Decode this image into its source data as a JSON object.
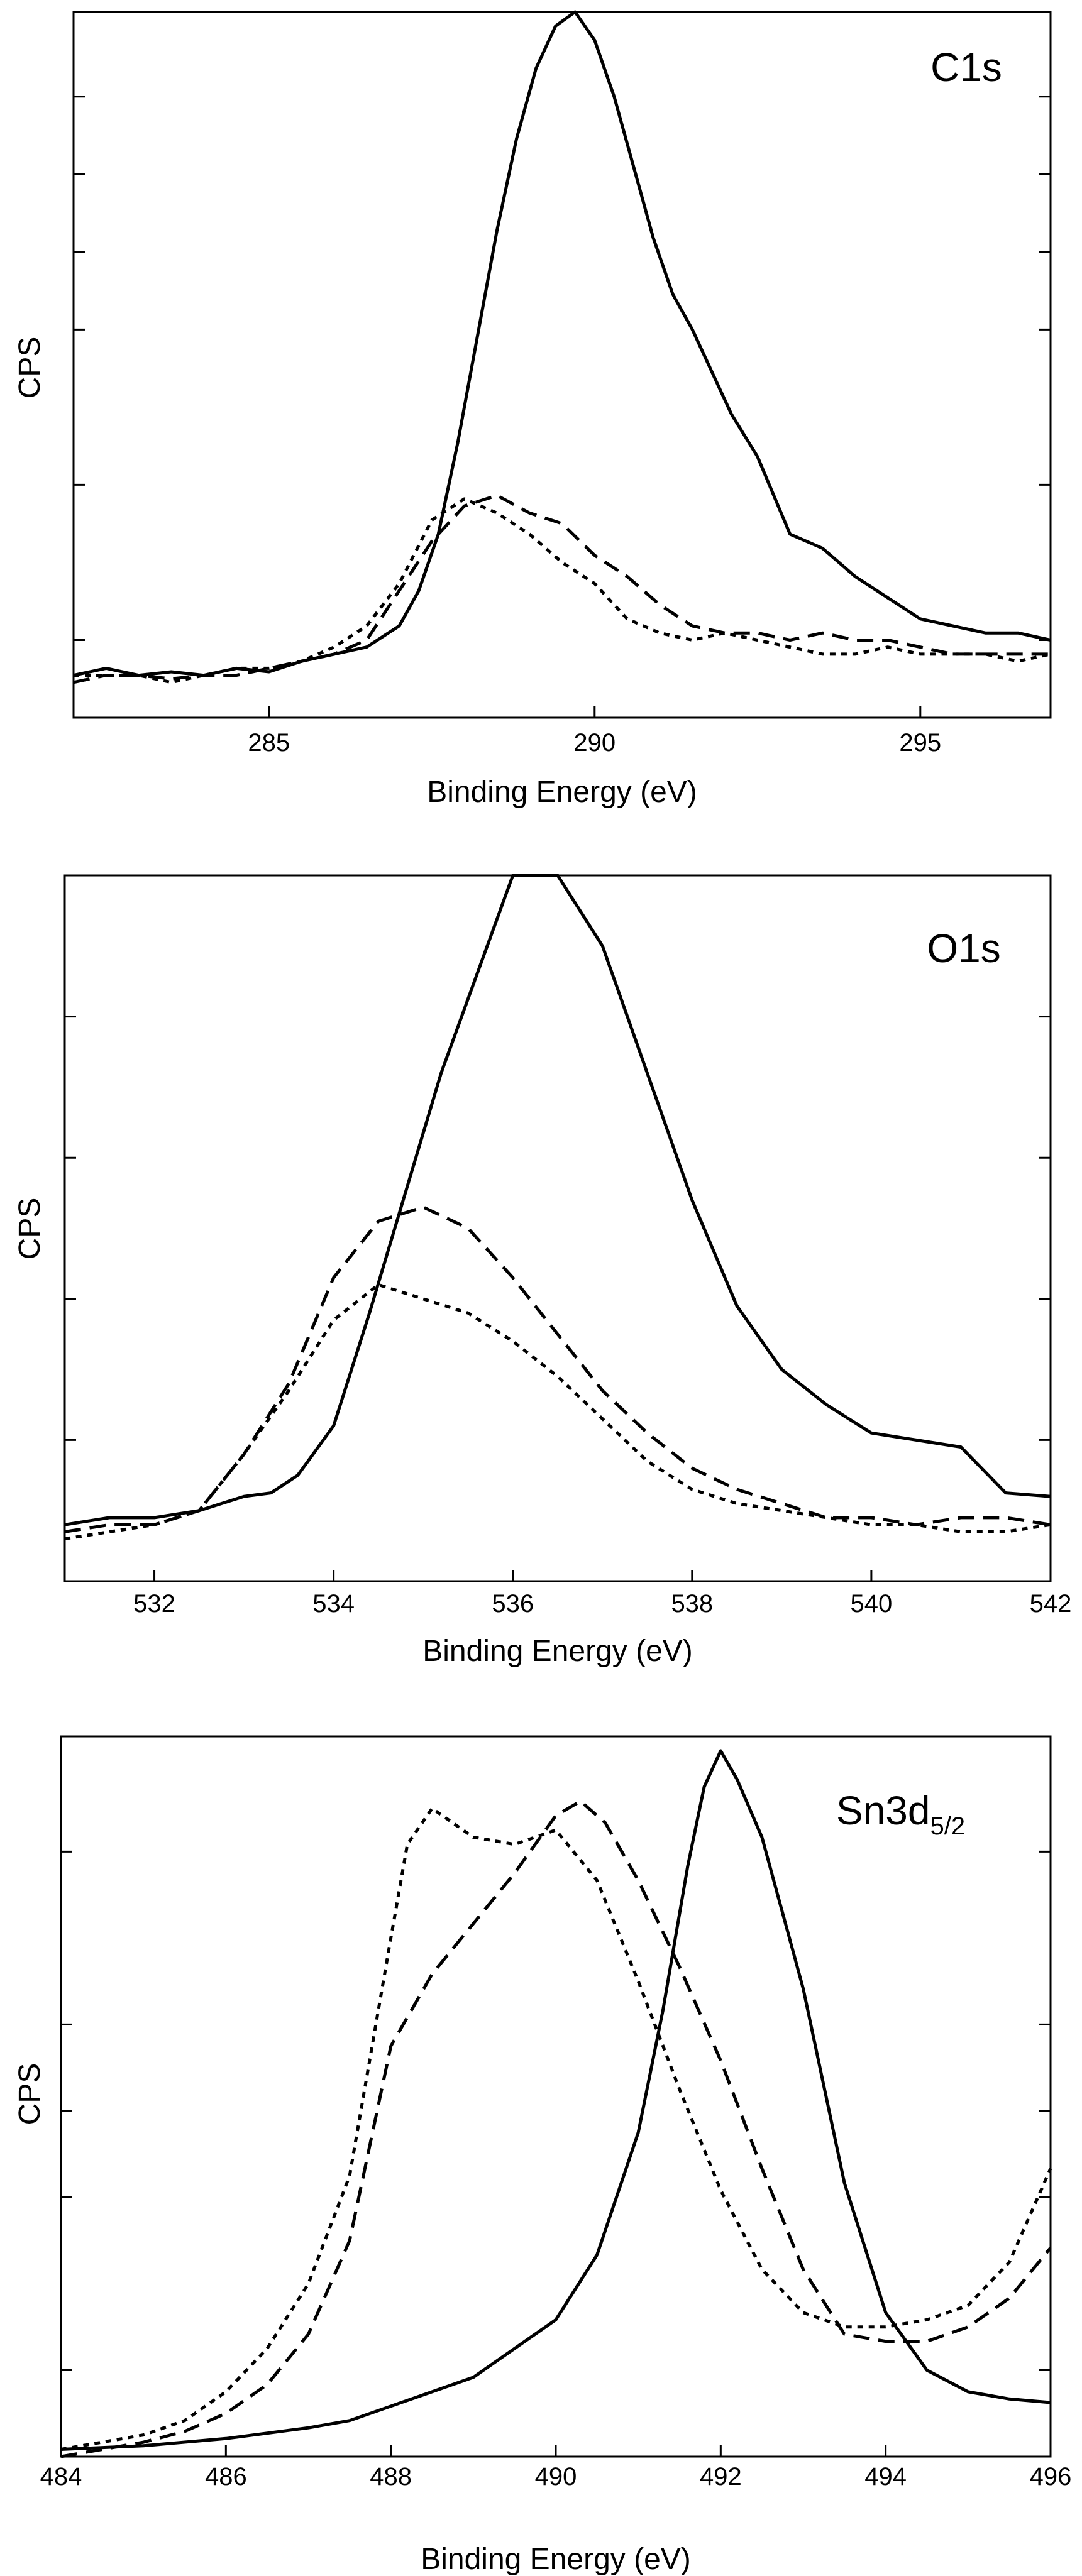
{
  "chart_data": [
    {
      "type": "line",
      "title": "C1s",
      "xlabel": "Binding Energy (eV)",
      "ylabel": "CPS",
      "xlim": [
        282,
        297
      ],
      "ylim": [
        0,
        100
      ],
      "xticks": [
        285,
        290,
        295
      ],
      "xtick_labels": [
        "285",
        "290",
        "295"
      ],
      "yticks": [
        11,
        33,
        55,
        66,
        77,
        88
      ],
      "series": [
        {
          "name": "solid",
          "style": "solid",
          "x": [
            282,
            282.5,
            283,
            283.5,
            284,
            284.5,
            285,
            285.5,
            286,
            286.5,
            287,
            287.3,
            287.6,
            287.9,
            288.2,
            288.5,
            288.8,
            289.1,
            289.4,
            289.7,
            290,
            290.3,
            290.6,
            290.9,
            291.2,
            291.5,
            291.8,
            292.1,
            292.5,
            293,
            293.5,
            294,
            294.5,
            295,
            295.5,
            296,
            296.5,
            297
          ],
          "values": [
            6,
            7,
            6,
            6.5,
            6,
            7,
            6.5,
            8,
            9,
            10,
            13,
            18,
            26,
            39,
            54,
            69,
            82,
            92,
            98,
            100,
            96,
            88,
            78,
            68,
            60,
            55,
            49,
            43,
            37,
            26,
            24,
            20,
            17,
            14,
            13,
            12,
            12,
            11
          ]
        },
        {
          "name": "dashed",
          "style": "dashed",
          "x": [
            282,
            282.5,
            283,
            283.5,
            284,
            284.5,
            285,
            285.5,
            286,
            286.5,
            287,
            287.5,
            288,
            288.5,
            289,
            289.5,
            290,
            290.5,
            291,
            291.5,
            292,
            292.5,
            293,
            293.5,
            294,
            294.5,
            295,
            295.5,
            296,
            296.5,
            297
          ],
          "values": [
            5,
            6,
            6,
            5.5,
            6,
            6,
            7,
            8,
            9,
            11,
            18,
            25,
            30,
            31.5,
            29,
            27.5,
            23,
            20,
            16,
            13,
            12,
            12,
            11,
            12,
            11,
            11,
            10,
            9,
            9,
            9,
            9
          ]
        },
        {
          "name": "dotted",
          "style": "dotted",
          "x": [
            282,
            282.5,
            283,
            283.5,
            284,
            284.5,
            285,
            285.5,
            286,
            286.5,
            287,
            287.5,
            288,
            288.5,
            289,
            289.5,
            290,
            290.5,
            291,
            291.5,
            292,
            292.5,
            293,
            293.5,
            294,
            294.5,
            295,
            295.5,
            296,
            296.5,
            297
          ],
          "values": [
            6,
            6,
            6,
            5,
            6,
            7,
            7,
            8,
            10,
            13,
            19,
            28,
            31,
            29,
            26,
            22,
            19,
            14,
            12,
            11,
            12,
            11,
            10,
            9,
            9,
            10,
            9,
            9,
            9,
            8,
            9
          ]
        }
      ]
    },
    {
      "type": "line",
      "title": "O1s",
      "xlabel": "Binding Energy (eV)",
      "ylabel": "CPS",
      "xlim": [
        531,
        542
      ],
      "ylim": [
        0,
        100
      ],
      "xticks": [
        532,
        534,
        536,
        538,
        540,
        542
      ],
      "xtick_labels": [
        "532",
        "534",
        "536",
        "538",
        "540",
        "542"
      ],
      "yticks": [
        20,
        40,
        60,
        80
      ],
      "series": [
        {
          "name": "solid",
          "style": "solid",
          "x": [
            531,
            531.5,
            532,
            532.5,
            533,
            533.3,
            533.6,
            534,
            534.4,
            534.8,
            535.2,
            535.6,
            536,
            536.5,
            537,
            537.5,
            538,
            538.5,
            539,
            539.5,
            540,
            540.5,
            541,
            541.5,
            542
          ],
          "values": [
            8,
            9,
            9,
            10,
            12,
            12.5,
            15,
            22,
            38,
            55,
            72,
            86,
            100,
            100,
            90,
            72,
            54,
            39,
            30,
            25,
            21,
            20,
            19,
            12.5,
            12
          ]
        },
        {
          "name": "dashed",
          "style": "dashed",
          "x": [
            531,
            531.5,
            532,
            532.5,
            533,
            533.5,
            534,
            534.5,
            535,
            535.5,
            536,
            536.5,
            537,
            537.5,
            538,
            538.5,
            539,
            539.5,
            540,
            540.5,
            541,
            541.5,
            542
          ],
          "values": [
            7,
            8,
            8,
            10,
            18,
            28,
            43,
            51,
            53,
            50,
            43,
            35,
            27,
            21,
            16,
            13,
            11,
            9,
            9,
            8,
            9,
            9,
            8
          ]
        },
        {
          "name": "dotted",
          "style": "dotted",
          "x": [
            531,
            531.5,
            532,
            532.5,
            533,
            533.5,
            534,
            534.5,
            535,
            535.5,
            536,
            536.5,
            537,
            537.5,
            538,
            538.5,
            539,
            539.5,
            540,
            540.5,
            541,
            541.5,
            542
          ],
          "values": [
            6,
            7,
            8,
            10,
            18,
            27,
            37,
            42,
            40,
            38,
            34,
            29,
            23,
            17,
            13,
            11,
            10,
            9,
            8,
            8,
            7,
            7,
            8
          ]
        }
      ]
    },
    {
      "type": "line",
      "title": "Sn3d",
      "title_subscript": "5/2",
      "xlabel": "Binding Energy (eV)",
      "ylabel": "CPS",
      "xlim": [
        484,
        496
      ],
      "ylim": [
        0,
        100
      ],
      "xticks": [
        484,
        486,
        488,
        490,
        492,
        494,
        496
      ],
      "xtick_labels": [
        "484",
        "486",
        "488",
        "490",
        "492",
        "494",
        "496"
      ],
      "yticks": [
        12,
        36,
        48,
        60,
        84
      ],
      "series": [
        {
          "name": "solid",
          "style": "solid",
          "x": [
            484,
            485,
            486,
            487,
            487.5,
            488,
            488.5,
            489,
            489.5,
            490,
            490.5,
            491,
            491.3,
            491.6,
            491.8,
            492,
            492.2,
            492.5,
            493,
            493.5,
            494,
            494.5,
            495,
            495.5,
            496
          ],
          "values": [
            1,
            1.5,
            2.5,
            4,
            5,
            7,
            9,
            11,
            15,
            19,
            28,
            45,
            62,
            82,
            93,
            98,
            94,
            86,
            65,
            38,
            20,
            12,
            9,
            8,
            7.5
          ]
        },
        {
          "name": "dashed",
          "style": "dashed",
          "x": [
            484,
            485,
            485.5,
            486,
            486.5,
            487,
            487.5,
            488,
            488.5,
            489,
            489.5,
            490,
            490.3,
            490.6,
            491,
            491.5,
            492,
            492.5,
            493,
            493.5,
            494,
            494.5,
            495,
            495.5,
            496
          ],
          "values": [
            0,
            2,
            3.5,
            6,
            10,
            17,
            30,
            57,
            67,
            74,
            81,
            89,
            91,
            88,
            80,
            68,
            55,
            40,
            26,
            17,
            16,
            16,
            18,
            22,
            29
          ]
        },
        {
          "name": "dotted",
          "style": "dotted",
          "x": [
            484,
            485,
            485.5,
            486,
            486.5,
            487,
            487.5,
            488,
            488.2,
            488.5,
            489,
            489.5,
            490,
            490.5,
            491,
            491.5,
            492,
            492.5,
            493,
            493.5,
            494,
            494.5,
            495,
            495.5,
            496
          ],
          "values": [
            1,
            3,
            5,
            9,
            15,
            24,
            39,
            72,
            85,
            90,
            86,
            85,
            87,
            80,
            66,
            51,
            37,
            26,
            20,
            18,
            18,
            19,
            21,
            27,
            40
          ]
        }
      ]
    }
  ]
}
